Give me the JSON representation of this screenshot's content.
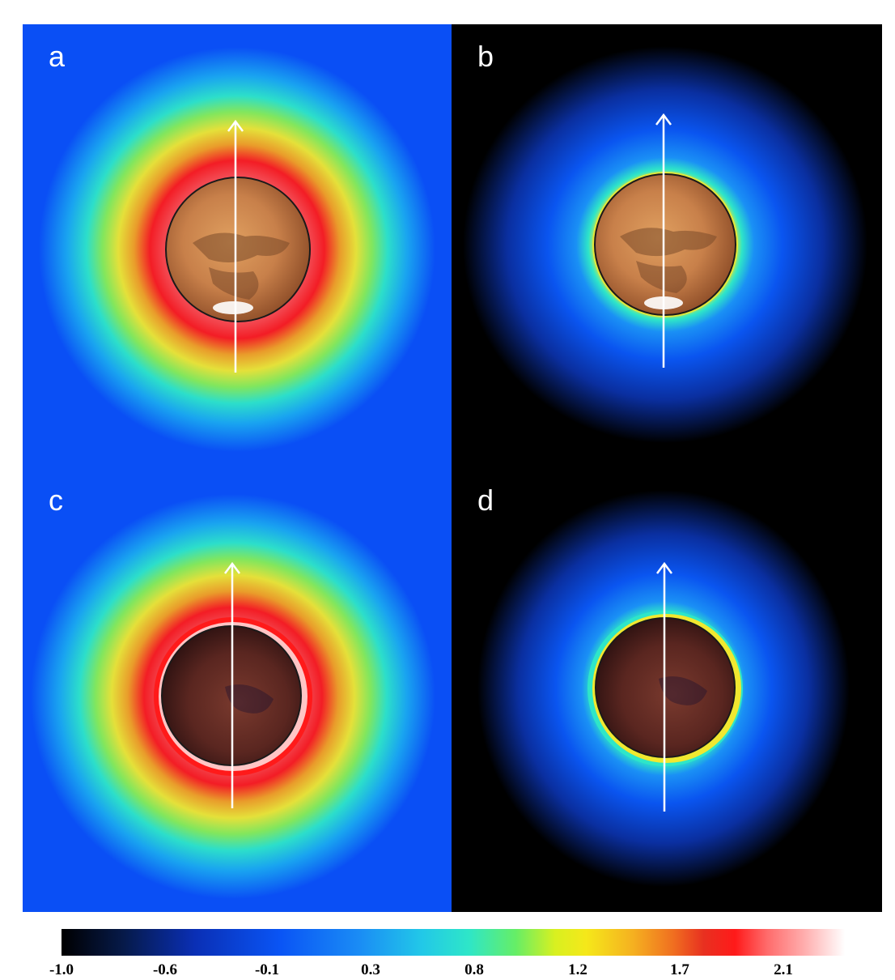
{
  "panels": [
    {
      "label": "a"
    },
    {
      "label": "b"
    },
    {
      "label": "c"
    },
    {
      "label": "d"
    }
  ],
  "colorbar": {
    "ticks": [
      "-1.0",
      "-0.6",
      "-0.1",
      "0.3",
      "0.8",
      "1.2",
      "1.7",
      "2.1"
    ]
  }
}
